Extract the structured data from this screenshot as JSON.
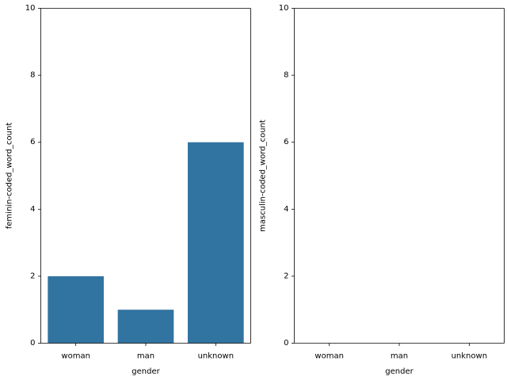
{
  "chart_data": [
    {
      "type": "bar",
      "title": "",
      "categories": [
        "woman",
        "man",
        "unknown"
      ],
      "values": [
        2,
        1,
        6
      ],
      "xlabel": "gender",
      "ylabel": "feminin-coded_word_count",
      "ylim": [
        0,
        10
      ],
      "yticks": [
        0,
        2,
        4,
        6,
        8,
        10
      ],
      "color": "#3274a1",
      "grid": false
    },
    {
      "type": "bar",
      "title": "",
      "categories": [
        "woman",
        "man",
        "unknown"
      ],
      "values": [
        0,
        0,
        0
      ],
      "xlabel": "gender",
      "ylabel": "masculin-coded_word_count",
      "ylim": [
        0,
        10
      ],
      "yticks": [
        0,
        2,
        4,
        6,
        8,
        10
      ],
      "color": "#3274a1",
      "grid": false
    }
  ]
}
